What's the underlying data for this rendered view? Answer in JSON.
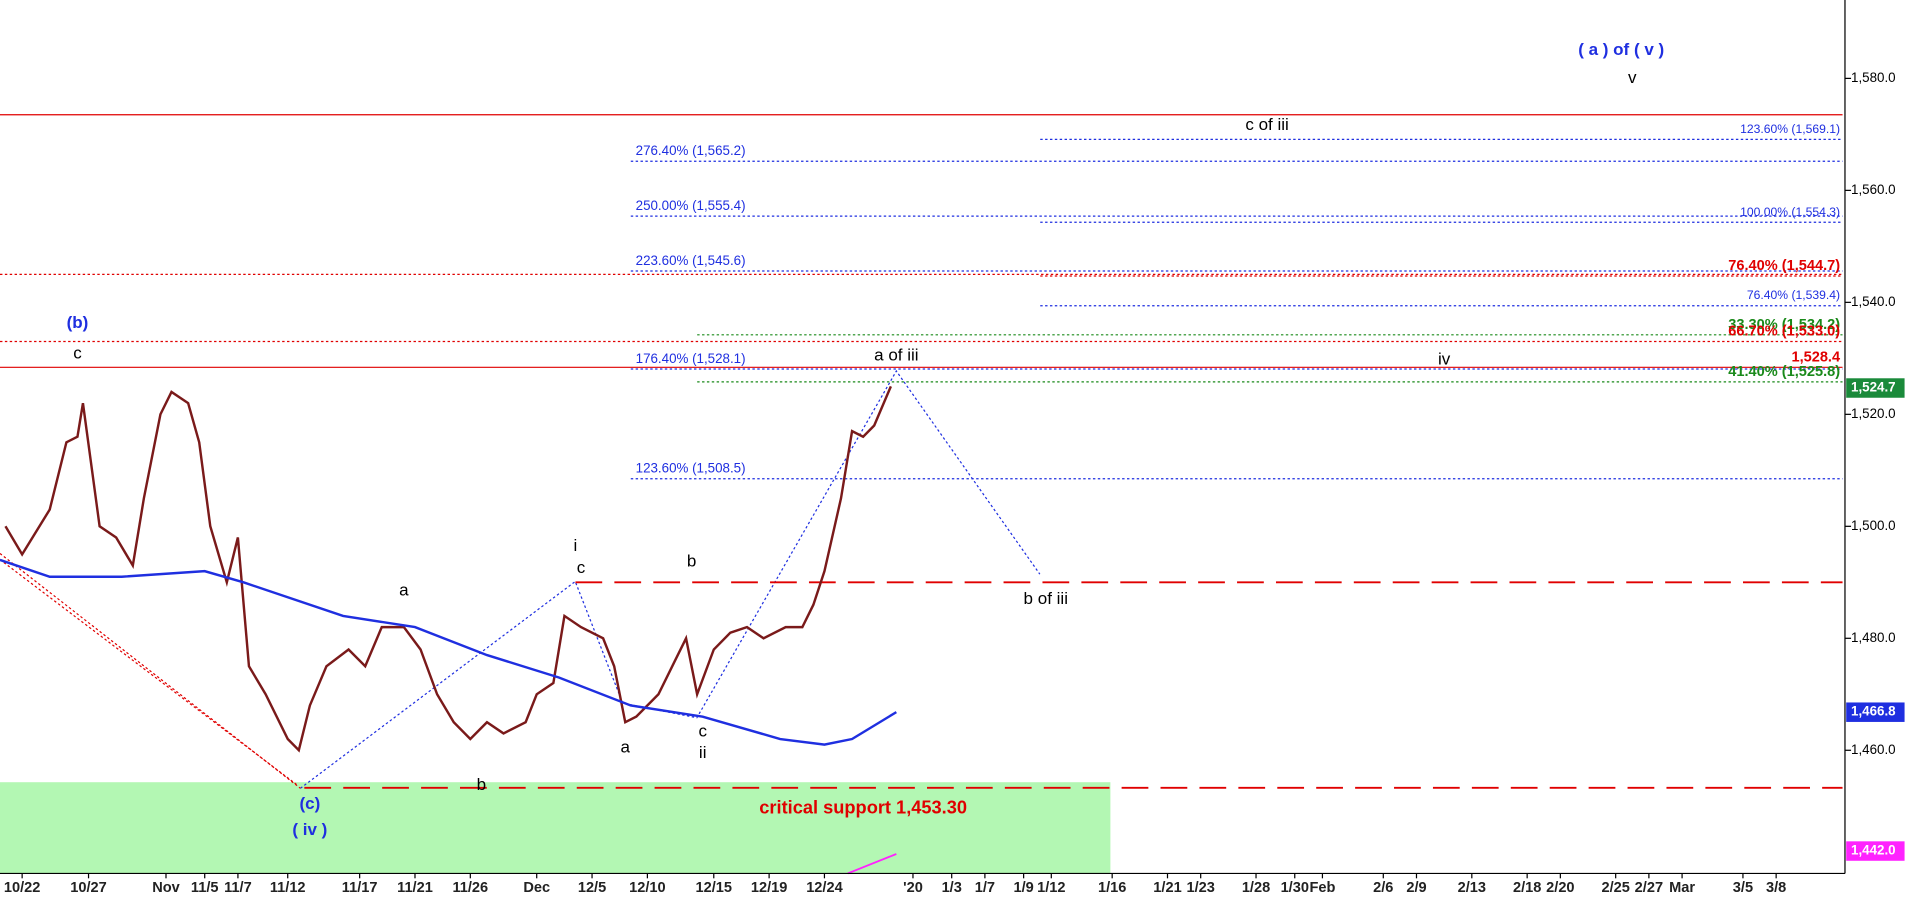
{
  "chart_data": {
    "type": "line",
    "xlim": [
      0,
      333
    ],
    "ylim": [
      1438,
      1594
    ],
    "yticks": [
      {
        "value": 1460,
        "label": "1,460.0"
      },
      {
        "value": 1480,
        "label": "1,480.0"
      },
      {
        "value": 1500,
        "label": "1,500.0"
      },
      {
        "value": 1520,
        "label": "1,520.0"
      },
      {
        "value": 1540,
        "label": "1,540.0"
      },
      {
        "value": 1560,
        "label": "1,560.0"
      },
      {
        "value": 1580,
        "label": "1,580.0"
      }
    ],
    "xticks": [
      {
        "value": 4,
        "label": "10/22"
      },
      {
        "value": 16,
        "label": "10/27"
      },
      {
        "value": 30,
        "label": "Nov"
      },
      {
        "value": 37,
        "label": "11/5"
      },
      {
        "value": 43,
        "label": "11/7"
      },
      {
        "value": 52,
        "label": "11/12"
      },
      {
        "value": 65,
        "label": "11/17"
      },
      {
        "value": 75,
        "label": "11/21"
      },
      {
        "value": 85,
        "label": "11/26"
      },
      {
        "value": 97,
        "label": "Dec"
      },
      {
        "value": 107,
        "label": "12/5"
      },
      {
        "value": 117,
        "label": "12/10"
      },
      {
        "value": 129,
        "label": "12/15"
      },
      {
        "value": 139,
        "label": "12/19"
      },
      {
        "value": 149,
        "label": "12/24"
      },
      {
        "value": 165,
        "label": "'20"
      },
      {
        "value": 172,
        "label": "1/3"
      },
      {
        "value": 178,
        "label": "1/7"
      },
      {
        "value": 185,
        "label": "1/9"
      },
      {
        "value": 190,
        "label": "1/12"
      },
      {
        "value": 201,
        "label": "1/16"
      },
      {
        "value": 211,
        "label": "1/21"
      },
      {
        "value": 217,
        "label": "1/23"
      },
      {
        "value": 227,
        "label": "1/28"
      },
      {
        "value": 234,
        "label": "1/30"
      },
      {
        "value": 239,
        "label": "Feb"
      },
      {
        "value": 250,
        "label": "2/6"
      },
      {
        "value": 256,
        "label": "2/9"
      },
      {
        "value": 266,
        "label": "2/13"
      },
      {
        "value": 276,
        "label": "2/18"
      },
      {
        "value": 282,
        "label": "2/20"
      },
      {
        "value": 292,
        "label": "2/25"
      },
      {
        "value": 298,
        "label": "2/27"
      },
      {
        "value": 304,
        "label": "Mar"
      },
      {
        "value": 315,
        "label": "3/5"
      },
      {
        "value": 321,
        "label": "3/8"
      }
    ],
    "series": [
      {
        "color": "#7a1a1a",
        "x": [
          1,
          4,
          9,
          12,
          14,
          15,
          18,
          21,
          24,
          26,
          29,
          31,
          34,
          36,
          38,
          41,
          43,
          45,
          48,
          52,
          54,
          56,
          59,
          63,
          66,
          69,
          73,
          76,
          79,
          82,
          85,
          88,
          91,
          95,
          97,
          100,
          102,
          105,
          109,
          111,
          113,
          115,
          119,
          122,
          124,
          126,
          129,
          132,
          135,
          138,
          142,
          145,
          147,
          149,
          152,
          154,
          156,
          158,
          161
        ],
        "values": [
          1500,
          1495,
          1503,
          1515,
          1516,
          1522,
          1500,
          1498,
          1493,
          1505,
          1520,
          1524,
          1522,
          1515,
          1500,
          1490,
          1498,
          1475,
          1470,
          1462,
          1460,
          1468,
          1475,
          1478,
          1475,
          1482,
          1482,
          1478,
          1470,
          1465,
          1462,
          1465,
          1463,
          1465,
          1470,
          1472,
          1484,
          1482,
          1480,
          1475,
          1465,
          1466,
          1470,
          1476,
          1480,
          1470,
          1478,
          1481,
          1482,
          1480,
          1482,
          1482,
          1486,
          1492,
          1505,
          1517,
          1516,
          1518,
          1525
        ]
      },
      {
        "color": "#1f2fe0",
        "x": [
          0,
          9,
          22,
          37,
          44,
          62,
          75,
          88,
          101,
          114,
          127,
          141,
          149,
          154,
          162
        ],
        "values": [
          1494,
          1491,
          1491,
          1492,
          1490,
          1484,
          1482,
          1477,
          1473,
          1468,
          1466,
          1462,
          1461,
          1462,
          1466.8
        ]
      }
    ],
    "levels": [
      {
        "value": 1573.5,
        "color": "#e00000",
        "style": "solid",
        "x0": 0
      },
      {
        "value": 1528.4,
        "color": "#e00000",
        "style": "solid",
        "x0": 0
      },
      {
        "value": 1545.0,
        "color": "#e00000",
        "style": "dotted",
        "x0": 0
      },
      {
        "value": 1533.0,
        "color": "#e00000",
        "style": "dotted",
        "x0": 0
      },
      {
        "value": 1490,
        "color": "#e00000",
        "style": "dashed",
        "x0": 104
      },
      {
        "value": 1453.3,
        "color": "#e00000",
        "style": "dashed",
        "x0": 55
      },
      {
        "value": 1565.2,
        "label": "276.40% (1,565.2)",
        "label_at": "start",
        "color": "#1f2fe0",
        "style": "dotted",
        "x0": 114
      },
      {
        "value": 1555.4,
        "label": "250.00% (1,555.4)",
        "label_at": "start",
        "color": "#1f2fe0",
        "style": "dotted",
        "x0": 114
      },
      {
        "value": 1545.6,
        "label": "223.60% (1,545.6)",
        "label_at": "start",
        "color": "#1f2fe0",
        "style": "dotted",
        "x0": 114
      },
      {
        "value": 1528.1,
        "label": "176.40% (1,528.1)",
        "label_at": "start",
        "color": "#1f2fe0",
        "style": "dotted",
        "x0": 114
      },
      {
        "value": 1508.5,
        "label": "123.60% (1,508.5)",
        "label_at": "start",
        "color": "#1f2fe0",
        "style": "dotted",
        "x0": 114
      },
      {
        "value": 1569.1,
        "label": "123.60% (1,569.1)",
        "label_at": "end",
        "color": "#1f2fe0",
        "style": "dotted",
        "x0": 188
      },
      {
        "value": 1554.3,
        "label": "100.00% (1,554.3)",
        "label_at": "end",
        "color": "#1f2fe0",
        "style": "dotted",
        "x0": 188
      },
      {
        "value": 1544.7,
        "label": "76.40% (1,544.7)",
        "label_at": "end",
        "color": "#e00000",
        "style": "dotted",
        "x0": 188
      },
      {
        "value": 1539.4,
        "label": "76.40% (1,539.4)",
        "label_at": "end",
        "color": "#1f2fe0",
        "style": "dotted",
        "x0": 188
      },
      {
        "value": 1534.2,
        "label": "33.30% (1,534.2)",
        "label_at": "end",
        "color": "#1a8a1a",
        "style": "dotted",
        "x0": 126
      },
      {
        "value": 1533.0,
        "label": "66.70% (1,533.0)",
        "label_at": "end",
        "color": "#e00000",
        "style": "none",
        "x0": 188
      },
      {
        "value": 1528.4,
        "label": "1,528.4",
        "label_at": "end",
        "color": "#e00000",
        "style": "none",
        "x0": 188
      },
      {
        "value": 1525.8,
        "label": "41.40% (1,525.8)",
        "label_at": "end",
        "color": "#1a8a1a",
        "style": "dotted",
        "x0": 126
      }
    ],
    "price_tags": [
      {
        "value": 1524.7,
        "label": "1,524.7",
        "color": "#1a8a3a"
      },
      {
        "value": 1466.8,
        "label": "1,466.8",
        "color": "#1f2fe0"
      },
      {
        "value": 1442.0,
        "label": "1,442.0",
        "color": "#ff22ff"
      }
    ],
    "annotations": [
      {
        "text": "(b)",
        "x": 14,
        "y": 1536.2,
        "color": "#1f2fe0"
      },
      {
        "text": "c",
        "x": 14,
        "y": 1530.8,
        "color": "#000"
      },
      {
        "text": "a",
        "x": 73,
        "y": 1488.4,
        "color": "#000"
      },
      {
        "text": "b",
        "x": 87,
        "y": 1453.7,
        "color": "#000"
      },
      {
        "text": "(c)",
        "x": 56,
        "y": 1450.3,
        "color": "#1f2fe0"
      },
      {
        "text": "( iv )",
        "x": 56,
        "y": 1445.7,
        "color": "#1f2fe0"
      },
      {
        "text": "i",
        "x": 104,
        "y": 1496.4,
        "color": "#000"
      },
      {
        "text": "c",
        "x": 105,
        "y": 1492.5,
        "color": "#000"
      },
      {
        "text": "b",
        "x": 125,
        "y": 1493.6,
        "color": "#000"
      },
      {
        "text": "a",
        "x": 113,
        "y": 1460.4,
        "color": "#000"
      },
      {
        "text": "c",
        "x": 127,
        "y": 1463.3,
        "color": "#000"
      },
      {
        "text": "ii",
        "x": 127,
        "y": 1459.4,
        "color": "#000"
      },
      {
        "text": "a of iii",
        "x": 162,
        "y": 1530.4,
        "color": "#000"
      },
      {
        "text": "b of iii",
        "x": 189,
        "y": 1486.9,
        "color": "#000"
      },
      {
        "text": "c of iii",
        "x": 229,
        "y": 1571.6,
        "color": "#000"
      },
      {
        "text": "iv",
        "x": 261,
        "y": 1529.7,
        "color": "#000"
      },
      {
        "text": "( a ) of ( v )",
        "x": 293,
        "y": 1585,
        "color": "#1f2fe0"
      },
      {
        "text": "v",
        "x": 295,
        "y": 1580,
        "color": "#000"
      },
      {
        "text": "critical support 1,453.30",
        "x": 156,
        "y": 1449.6,
        "color": "#e00000"
      }
    ]
  }
}
